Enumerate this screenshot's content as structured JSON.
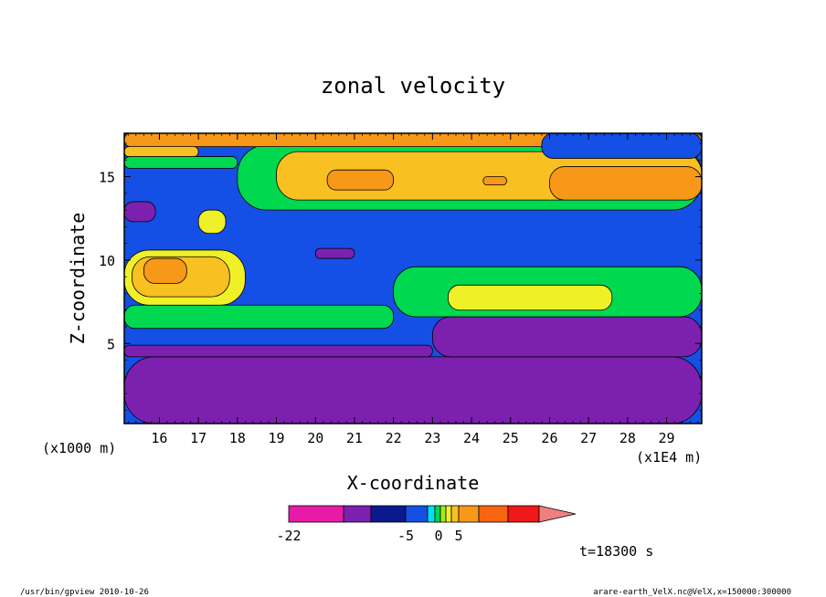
{
  "chart_data": {
    "type": "heatmap",
    "title": "zonal velocity",
    "xlabel": "X-coordinate",
    "ylabel": "Z-coordinate",
    "x_unit_label": "(x1E4 m)",
    "y_unit_label": "(x1000 m)",
    "xlim": [
      15.1,
      29.9
    ],
    "ylim": [
      0.2,
      17.6
    ],
    "x_ticks": [
      "16",
      "17",
      "18",
      "19",
      "20",
      "21",
      "22",
      "23",
      "24",
      "25",
      "26",
      "27",
      "28",
      "29"
    ],
    "y_ticks": [
      "5",
      "10",
      "15"
    ],
    "colorbar": {
      "levels": [
        -22,
        -15,
        -10,
        -5,
        -3,
        -1,
        0,
        1,
        3,
        5,
        10,
        15,
        20
      ],
      "colors": [
        "#e81aa8",
        "#7c20b0",
        "#0a1a8c",
        "#1450e6",
        "#00e0f0",
        "#00d850",
        "#a8e81e",
        "#f0f028",
        "#f8c020",
        "#f89818",
        "#f86410",
        "#f01818",
        "#f08080"
      ],
      "labels": [
        "-22",
        "-5",
        "0",
        "5"
      ]
    },
    "time_label": "t=18300 s",
    "footer_left": "/usr/bin/gpview   2010-10-26",
    "footer_right": "arare-earth_VelX.nc@VelX,x=150000:300000",
    "grid": false,
    "field": {
      "base": -5,
      "blobs": [
        {
          "x0": 15.1,
          "x1": 29.9,
          "z0": 0.2,
          "z1": 4.2,
          "v": -12
        },
        {
          "x0": 15.1,
          "x1": 23.0,
          "z0": 4.2,
          "z1": 4.9,
          "v": -12
        },
        {
          "x0": 23.0,
          "x1": 29.9,
          "z0": 4.2,
          "z1": 6.6,
          "v": -12
        },
        {
          "x0": 15.1,
          "x1": 22.0,
          "z0": 5.9,
          "z1": 7.3,
          "v": -1
        },
        {
          "x0": 22.0,
          "x1": 29.9,
          "z0": 6.6,
          "z1": 9.6,
          "v": -1
        },
        {
          "x0": 15.1,
          "x1": 18.2,
          "z0": 7.3,
          "z1": 10.6,
          "v": 1
        },
        {
          "x0": 15.3,
          "x1": 17.8,
          "z0": 7.8,
          "z1": 10.2,
          "v": 4
        },
        {
          "x0": 15.6,
          "x1": 16.7,
          "z0": 8.6,
          "z1": 10.1,
          "v": 9
        },
        {
          "x0": 23.4,
          "x1": 27.6,
          "z0": 7.0,
          "z1": 8.5,
          "v": 2
        },
        {
          "x0": 17.0,
          "x1": 17.7,
          "z0": 11.6,
          "z1": 13.0,
          "v": 1
        },
        {
          "x0": 20.0,
          "x1": 21.0,
          "z0": 10.1,
          "z1": 10.7,
          "v": -12
        },
        {
          "x0": 15.1,
          "x1": 15.9,
          "z0": 12.3,
          "z1": 13.5,
          "v": -12
        },
        {
          "x0": 15.1,
          "x1": 18.0,
          "z0": 15.5,
          "z1": 16.2,
          "v": -1
        },
        {
          "x0": 18.0,
          "x1": 29.9,
          "z0": 13.0,
          "z1": 16.9,
          "v": -1
        },
        {
          "x0": 15.1,
          "x1": 17.0,
          "z0": 16.2,
          "z1": 16.8,
          "v": 4
        },
        {
          "x0": 19.0,
          "x1": 29.9,
          "z0": 13.6,
          "z1": 16.5,
          "v": 4
        },
        {
          "x0": 15.1,
          "x1": 29.9,
          "z0": 16.8,
          "z1": 17.6,
          "v": 8
        },
        {
          "x0": 20.3,
          "x1": 22.0,
          "z0": 14.2,
          "z1": 15.4,
          "v": 9
        },
        {
          "x0": 26.0,
          "x1": 29.9,
          "z0": 13.6,
          "z1": 15.6,
          "v": 8
        },
        {
          "x0": 24.3,
          "x1": 24.9,
          "z0": 14.5,
          "z1": 15.0,
          "v": 8
        },
        {
          "x0": 25.8,
          "x1": 29.9,
          "z0": 16.1,
          "z1": 17.6,
          "v": -5
        }
      ]
    }
  }
}
